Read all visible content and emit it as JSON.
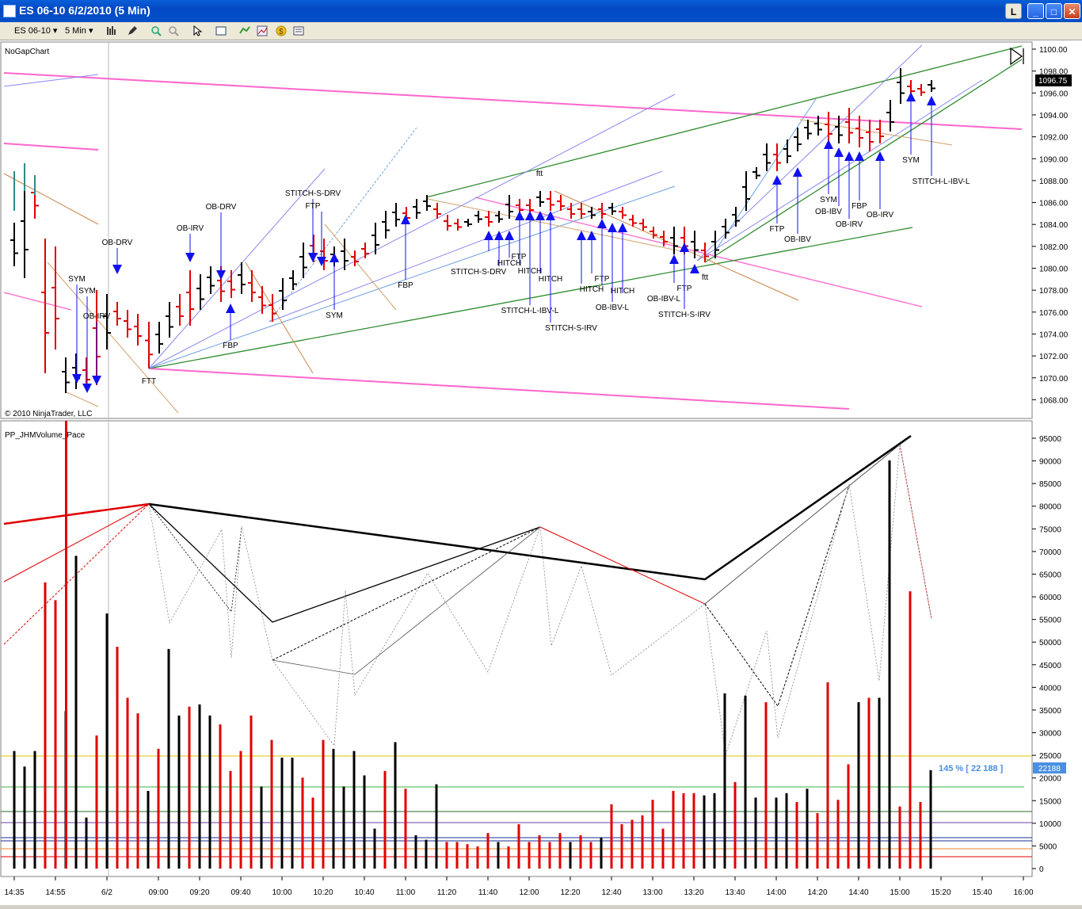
{
  "window": {
    "title": "ES 06-10  6/2/2010 (5 Min)",
    "buttons": {
      "l": "L",
      "minimize": "_",
      "maximize": "□",
      "close": "✕"
    }
  },
  "toolbar": {
    "instrument": "ES 06-10",
    "interval": "5 Min",
    "icons": [
      "bar-style-icon",
      "pencil-icon",
      "zoom-in-icon",
      "zoom-out-icon",
      "cursor-icon",
      "properties-icon",
      "strategy-icon",
      "chart-trader-icon",
      "dollar-icon",
      "data-box-icon"
    ]
  },
  "price_panel": {
    "indicator": "NoGapChart",
    "copyright": "© 2010 NinjaTrader, LLC",
    "y_ticks": [
      "1100.00",
      "1098.00",
      "1096.00",
      "1094.00",
      "1092.00",
      "1090.00",
      "1088.00",
      "1086.00",
      "1084.00",
      "1082.00",
      "1080.00",
      "1078.00",
      "1076.00",
      "1074.00",
      "1072.00",
      "1070.00",
      "1068.00"
    ],
    "current_price": "1096.75",
    "labels": [
      "OB-DRV",
      "SYM",
      "SYM",
      "OB-IRV",
      "OB-IRV",
      "OB-DRV",
      "FBP",
      "STITCH-S-DRV",
      "FTP",
      "SYM",
      "FBP",
      "ftt",
      "STITCH-S-DRV",
      "FTP",
      "HITCH",
      "HITCH",
      "HITCH",
      "STITCH-L-IBV-L",
      "STITCH-S-IRV",
      "HITCH",
      "FTP",
      "HITCH",
      "OB-IBV-L",
      "OB-IBV-L",
      "FTP",
      "STITCH-S-IRV",
      "ftt",
      "FTP",
      "OB-IBV",
      "SYM",
      "OB-IBV",
      "FBP",
      "OB-IRV",
      "OB-IRV",
      "SYM",
      "STITCH-L-IBV-L",
      "FTT"
    ]
  },
  "volume_panel": {
    "indicator": "PP_JHMVolume_Pace",
    "y_ticks": [
      "95000",
      "90000",
      "85000",
      "80000",
      "75000",
      "70000",
      "65000",
      "60000",
      "55000",
      "50000",
      "45000",
      "40000",
      "35000",
      "30000",
      "25000",
      "20000",
      "15000",
      "10000",
      "5000",
      "0"
    ],
    "pace_label": "145 % [ 22 188 ]",
    "current_value": "22188"
  },
  "x_axis": {
    "ticks": [
      "14:35",
      "14:55",
      "6/2",
      "09:00",
      "09:20",
      "09:40",
      "10:00",
      "10:20",
      "10:40",
      "11:00",
      "11:20",
      "11:40",
      "12:00",
      "12:20",
      "12:40",
      "13:00",
      "13:20",
      "13:40",
      "14:00",
      "14:20",
      "14:40",
      "15:00",
      "15:20",
      "15:40",
      "16:00"
    ]
  },
  "colors": {
    "up": "#000000",
    "down": "#e00000",
    "signal": "#1010f0",
    "band": "#ff66cc",
    "trend": "#2e8b2e",
    "pace": "#4a90e2"
  },
  "chart_data": {
    "type": "bar",
    "title": "",
    "xlabel": "",
    "ylabel": "",
    "ylim": [
      0,
      97000
    ],
    "categories_note": "5-minute bars, one per tick",
    "values": [
      26500,
      23000,
      26500,
      64500,
      60500,
      35500,
      70500,
      11500,
      30000,
      57500,
      50000,
      38500,
      35000,
      17500,
      27000,
      49500,
      34500,
      36500,
      37000,
      34500,
      32500,
      22000,
      26500,
      34500,
      18500,
      29000,
      25000,
      25000,
      20500,
      16000,
      29000,
      27000,
      18500,
      26500,
      21000,
      9000,
      22000,
      28500,
      18000,
      7500,
      6500,
      19000,
      6000,
      6000,
      5500,
      5000,
      8000,
      6000,
      5000,
      10000,
      6000,
      7500,
      6000,
      8000,
      6000,
      7500,
      6000,
      7000,
      14500,
      10000,
      11000,
      12000,
      15500,
      9000,
      17500,
      17000,
      17000,
      16500,
      17000,
      39500,
      19500,
      39000,
      16000,
      37500,
      16000,
      17000,
      15000,
      18000,
      12500,
      42000,
      15500,
      23500,
      37500,
      38500,
      38500,
      92000,
      14000,
      62500,
      15000,
      22188
    ],
    "up_down": "mixed"
  }
}
